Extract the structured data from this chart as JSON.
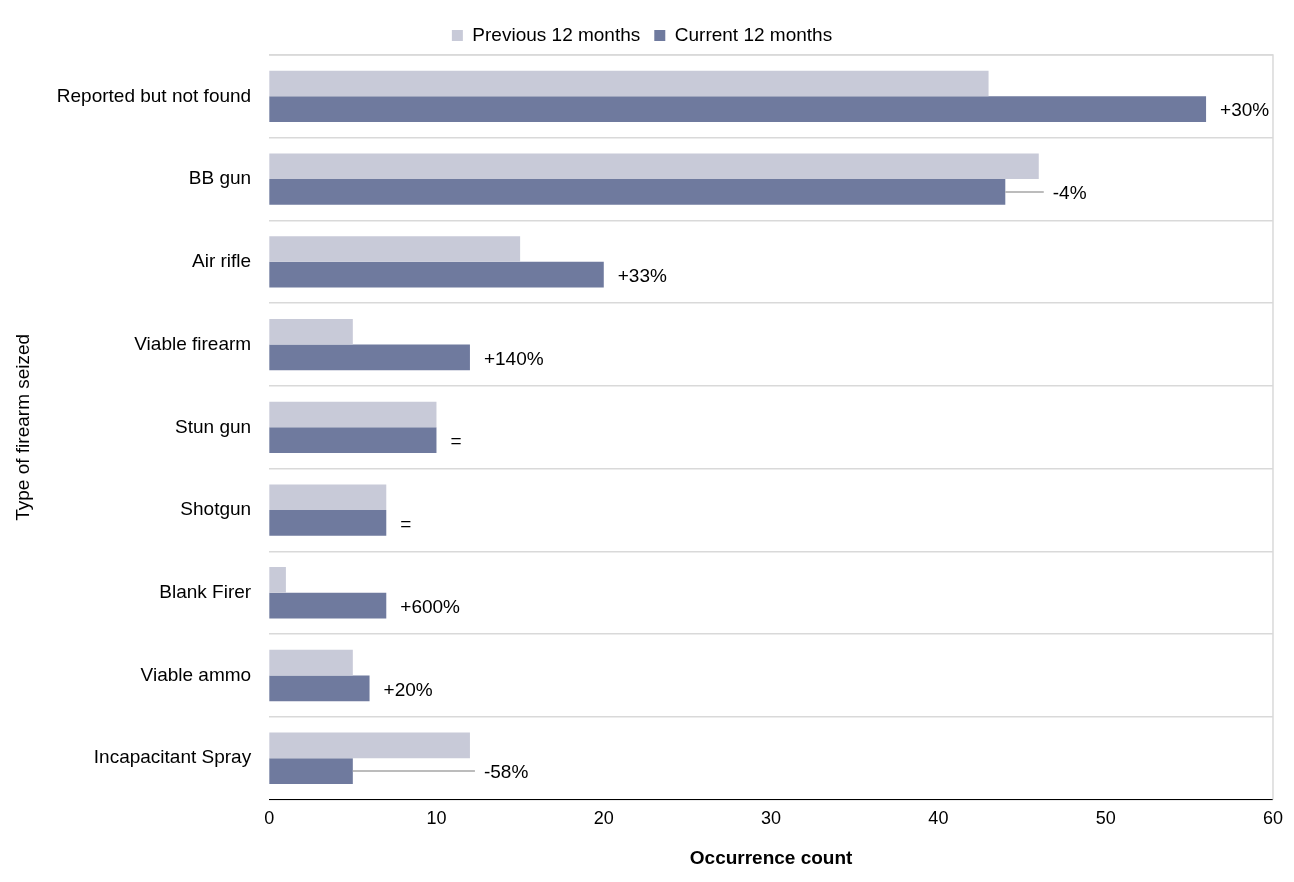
{
  "chart_data": {
    "type": "bar",
    "orientation": "horizontal",
    "xlabel": "Occurrence count",
    "ylabel": "Type of firearm seized",
    "categories": [
      "Reported but not found",
      "BB gun",
      "Air rifle",
      "Viable firearm",
      "Stun gun",
      "Shotgun",
      "Blank Firer",
      "Viable ammo",
      "Incapacitant Spray"
    ],
    "series": [
      {
        "name": "Previous 12 months",
        "color": "#c8cad8",
        "values": [
          43,
          46,
          15,
          5,
          10,
          7,
          1,
          5,
          12
        ]
      },
      {
        "name": "Current 12 months",
        "color": "#6f7a9e",
        "values": [
          56,
          44,
          20,
          12,
          10,
          7,
          7,
          6,
          5
        ]
      }
    ],
    "annotations": [
      {
        "text": "+30%",
        "x": 56,
        "y": "Reported but not found"
      },
      {
        "text": "-4%",
        "x": 46,
        "y": "BB gun"
      },
      {
        "text": "+33%",
        "x": 20,
        "y": "Air rifle"
      },
      {
        "text": "+140%",
        "x": 12,
        "y": "Viable firearm"
      },
      {
        "text": "=",
        "x": 10,
        "y": "Stun gun"
      },
      {
        "text": "=",
        "x": 7,
        "y": "Shotgun"
      },
      {
        "text": "+600%",
        "x": 7,
        "y": "Blank Firer"
      },
      {
        "text": "+20%",
        "x": 6,
        "y": "Viable ammo"
      },
      {
        "text": "-58%",
        "x": 12,
        "y": "Incapacitant Spray"
      }
    ],
    "xlim": [
      0,
      60
    ],
    "xticks": [
      0,
      10,
      20,
      30,
      40,
      50,
      60
    ],
    "grid": "y",
    "legend": "top"
  }
}
